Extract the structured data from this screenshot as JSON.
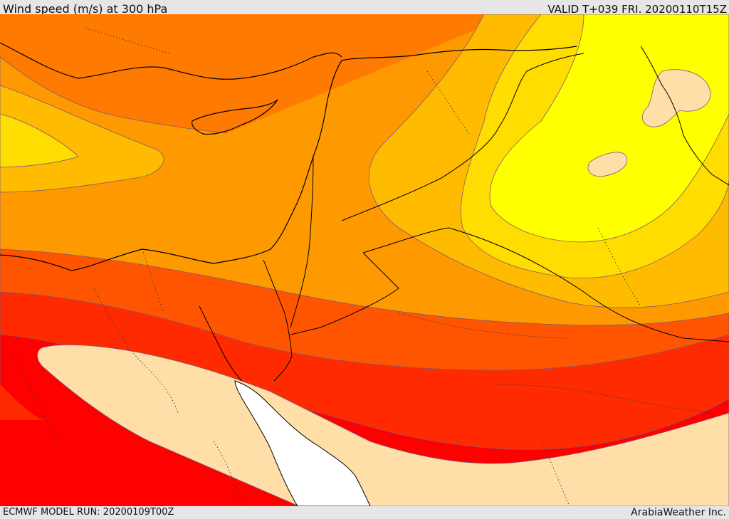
{
  "header": {
    "title": "Wind speed (m/s) at 300 hPa",
    "valid": "VALID T+039 FRI. 20200110T15Z"
  },
  "footer": {
    "model_run": "ECMWF MODEL RUN: 20200109T00Z",
    "credit": "ArabiaWeather Inc."
  },
  "colors": {
    "very_light": "#ffdea8",
    "yellow": "#ffff00",
    "gold": "#ffdd00",
    "amber": "#ffbb00",
    "orange": "#ff9900",
    "dark_orange": "#ff7700",
    "red_orange": "#ff5500",
    "red": "#ff2200",
    "pure_red": "#ff0000",
    "sea": "#ffffff"
  }
}
